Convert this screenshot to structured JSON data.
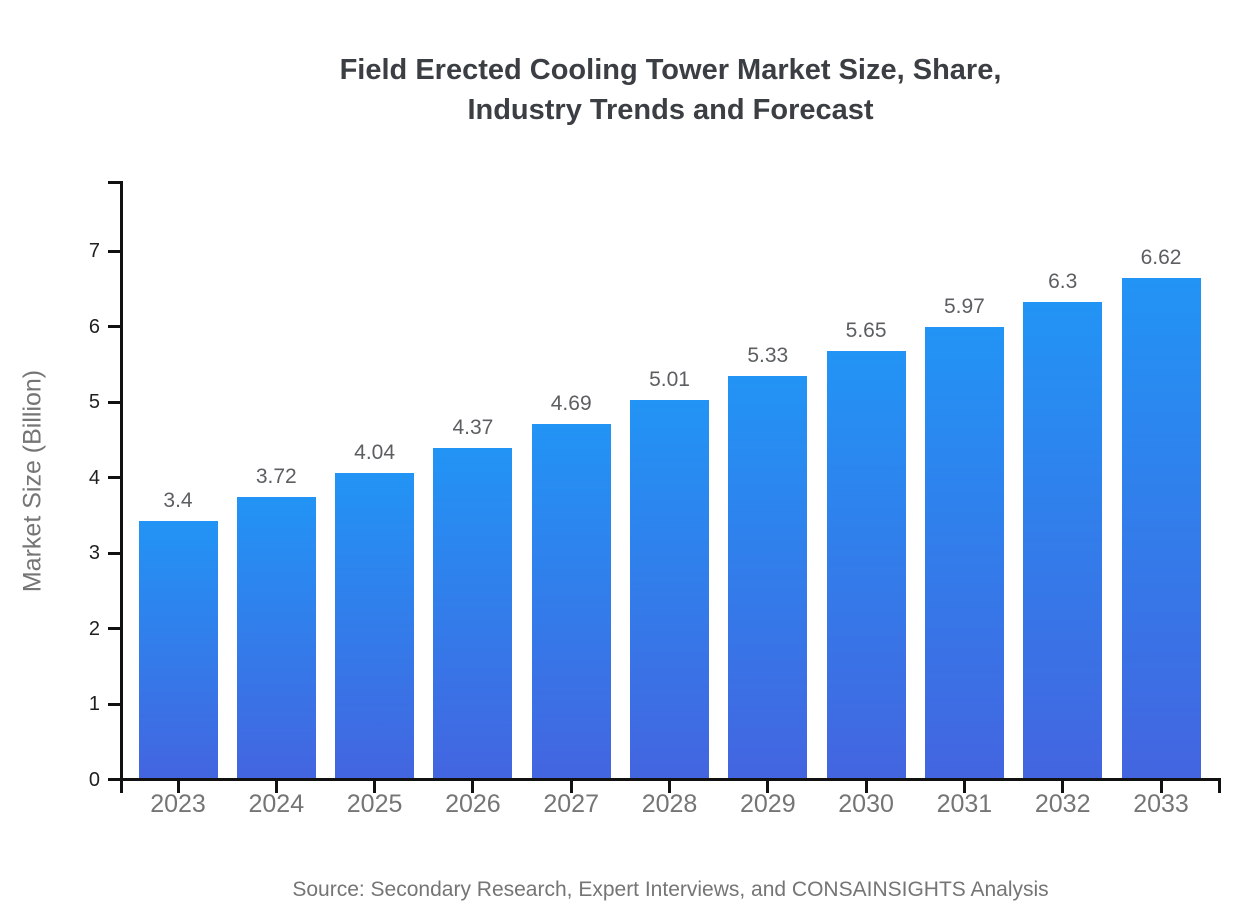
{
  "title": {
    "line1": "Field Erected Cooling Tower Market Size, Share,",
    "line2": "Industry Trends and Forecast"
  },
  "source": "Source: Secondary Research, Expert Interviews, and CONSAINSIGHTS Analysis",
  "chart_data": {
    "type": "bar",
    "title": "Field Erected Cooling Tower Market Size, Share, Industry Trends and Forecast",
    "categories": [
      "2023",
      "2024",
      "2025",
      "2026",
      "2027",
      "2028",
      "2029",
      "2030",
      "2031",
      "2032",
      "2033"
    ],
    "values": [
      3.4,
      3.72,
      4.04,
      4.37,
      4.69,
      5.01,
      5.33,
      5.65,
      5.97,
      6.3,
      6.62
    ],
    "value_labels": [
      "3.4",
      "3.72",
      "4.04",
      "4.37",
      "4.69",
      "5.01",
      "5.33",
      "5.65",
      "5.97",
      "6.3",
      "6.62"
    ],
    "xlabel": "",
    "ylabel": "Market Size (Billion)",
    "ylim": [
      0,
      7.9
    ],
    "yticks": [
      0,
      1,
      2,
      3,
      4,
      5,
      6,
      7
    ],
    "grid": false,
    "legend": "none",
    "colors": {
      "bar_gradient_top": "#2294f5",
      "bar_gradient_bottom": "#4365e0",
      "axis_line": "#111111",
      "title_text": "#3b3e42",
      "tick_label_text": "#1f1f1f",
      "category_label_text": "#757575",
      "value_label_text": "#5c5f62",
      "source_text": "#757575"
    }
  }
}
